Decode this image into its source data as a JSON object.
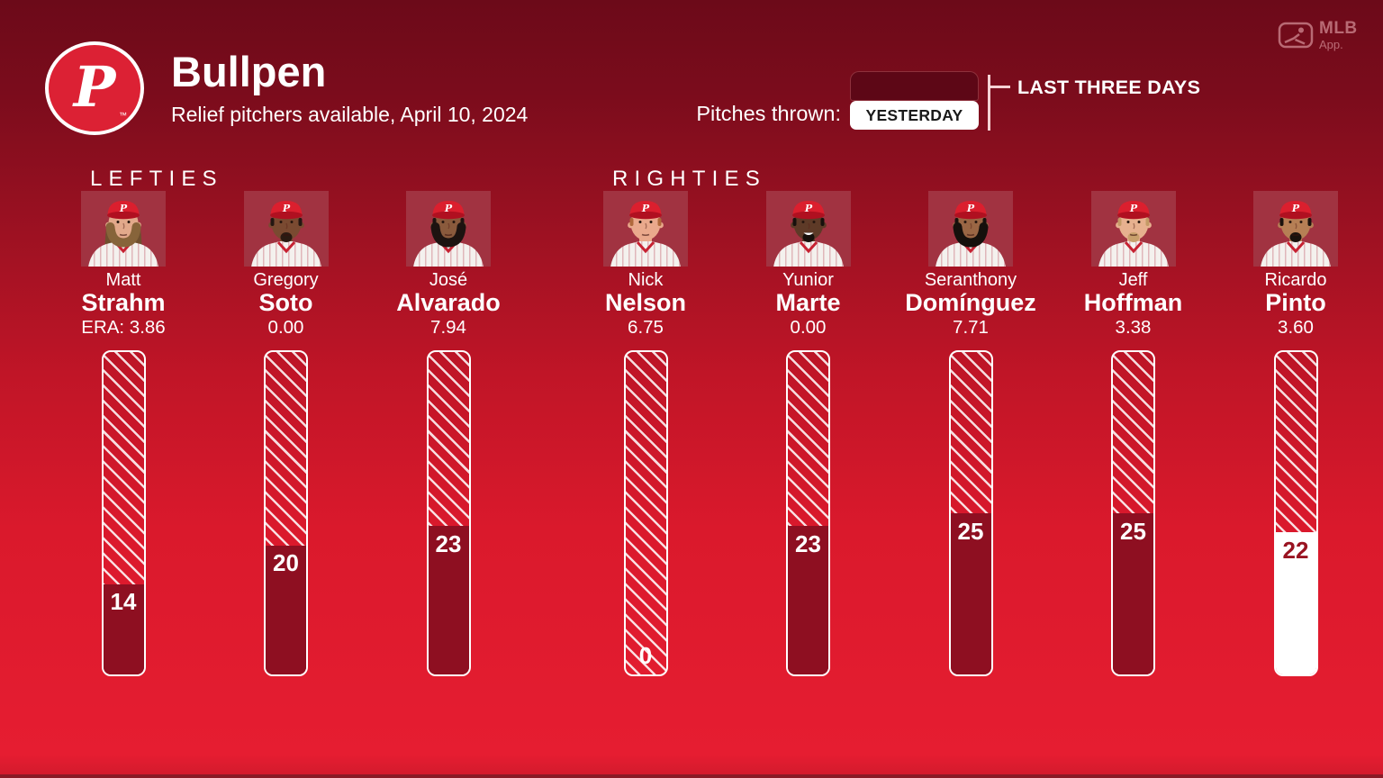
{
  "header": {
    "title": "Bullpen",
    "subtitle": "Relief pitchers available, April 10, 2024",
    "team_logo_letter": "P",
    "trademark": "™"
  },
  "brand": {
    "line1": "MLB",
    "line2": "App."
  },
  "legend": {
    "label": "Pitches thrown:",
    "yesterday": "YESTERDAY",
    "last_three_days": "LAST THREE DAYS"
  },
  "colors": {
    "bg_top": "#6c0a19",
    "bg_mid": "#c01527",
    "bg_bottom": "#e61d31",
    "bottom_edge": "#8a1a26",
    "bar_border": "#ffffff",
    "bar_fill_last_three_days": "#8e0f21",
    "bar_fill_yesterday": "#ffffff",
    "count_on_yesterday_fill": "#991321",
    "legend_dark_segment": "#5d0716",
    "hatch_line": "rgba(255,255,255,0.85)",
    "cap_red": "#db1f2e",
    "logo_red": "#dc2134"
  },
  "chart_data": {
    "type": "bar",
    "title": "Bullpen",
    "subtitle": "Relief pitchers available, April 10, 2024",
    "unit": "pitches",
    "scale_max": 50,
    "legend": {
      "dark_fill": "LAST THREE DAYS",
      "white_fill": "YESTERDAY"
    },
    "sections": [
      {
        "label": "LEFTIES",
        "pitchers": [
          {
            "first": "Matt",
            "last": "Strahm",
            "era_label": "ERA: 3.86",
            "era": 3.86,
            "pitches": 14,
            "thrown": "last_three_days",
            "avatar": {
              "skin": "#e2a98b",
              "hair": "#6f4f2e",
              "hair_style": "long",
              "beard": "full",
              "beard_color": "#87643a",
              "smile": false
            }
          },
          {
            "first": "Gregory",
            "last": "Soto",
            "era_label": "0.00",
            "era": 0.0,
            "pitches": 20,
            "thrown": "last_three_days",
            "avatar": {
              "skin": "#7a4a31",
              "hair": "#241712",
              "hair_style": "short",
              "beard": "goatee",
              "beard_color": "#2a1a12",
              "smile": false
            }
          },
          {
            "first": "José",
            "last": "Alvarado",
            "era_label": "7.94",
            "era": 7.94,
            "pitches": 23,
            "thrown": "last_three_days",
            "avatar": {
              "skin": "#8a5a3c",
              "hair": "#1d1310",
              "hair_style": "short",
              "beard": "full",
              "beard_color": "#1d1310",
              "smile": false
            }
          }
        ]
      },
      {
        "label": "RIGHTIES",
        "pitchers": [
          {
            "first": "Nick",
            "last": "Nelson",
            "era_label": "6.75",
            "era": 6.75,
            "pitches": 0,
            "thrown": null,
            "avatar": {
              "skin": "#eaa98c",
              "hair": "#b0693c",
              "hair_style": "short",
              "beard": "none",
              "beard_color": null,
              "smile": false
            }
          },
          {
            "first": "Yunior",
            "last": "Marte",
            "era_label": "0.00",
            "era": 0.0,
            "pitches": 23,
            "thrown": "last_three_days",
            "avatar": {
              "skin": "#5e3a27",
              "hair": "#17100c",
              "hair_style": "short",
              "beard": "goatee",
              "beard_color": "#17100c",
              "smile": true
            }
          },
          {
            "first": "Seranthony",
            "last": "Domínguez",
            "era_label": "7.71",
            "era": 7.71,
            "pitches": 25,
            "thrown": "last_three_days",
            "avatar": {
              "skin": "#9a6644",
              "hair": "#16100c",
              "hair_style": "short",
              "beard": "full",
              "beard_color": "#16100c",
              "smile": false
            }
          },
          {
            "first": "Jeff",
            "last": "Hoffman",
            "era_label": "3.38",
            "era": 3.38,
            "pitches": 25,
            "thrown": "last_three_days",
            "avatar": {
              "skin": "#e7b18f",
              "hair": "#c49a66",
              "hair_style": "short",
              "beard": "goatee",
              "beard_color": "#c9a06c",
              "smile": false
            }
          },
          {
            "first": "Ricardo",
            "last": "Pinto",
            "era_label": "3.60",
            "era": 3.6,
            "pitches": 22,
            "thrown": "yesterday",
            "avatar": {
              "skin": "#b67f55",
              "hair": "#1a120d",
              "hair_style": "short",
              "beard": "goatee",
              "beard_color": "#1a120d",
              "smile": false
            }
          }
        ]
      }
    ]
  }
}
